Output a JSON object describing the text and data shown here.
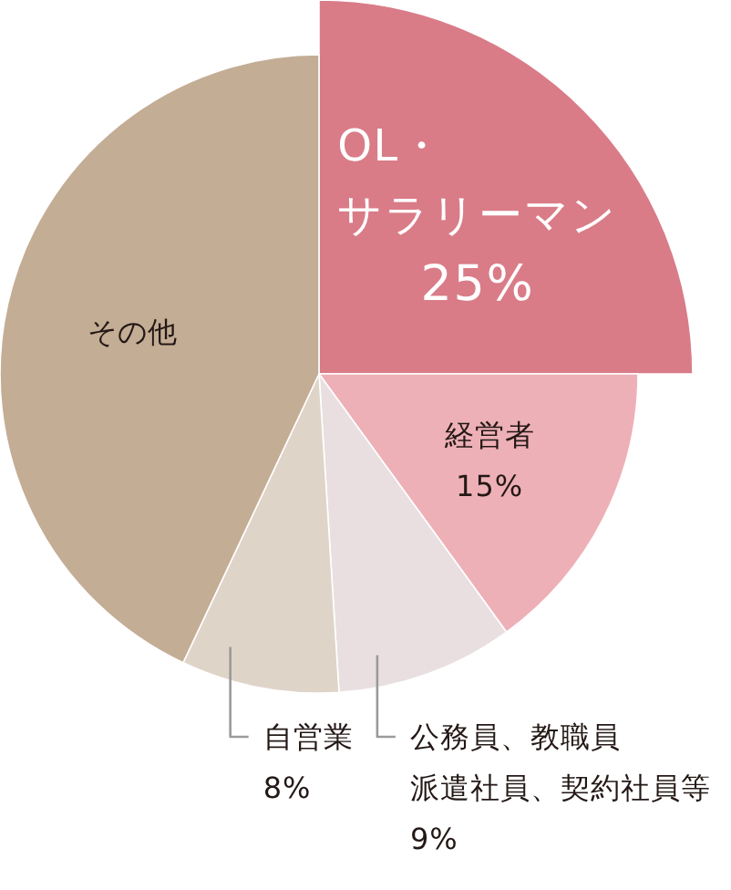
{
  "chart_data": {
    "type": "pie",
    "categories": [
      "OL・サラリーマン",
      "経営者",
      "公務員、教職員派遣社員、契約社員等",
      "自営業",
      "その他"
    ],
    "values": [
      25,
      15,
      9,
      8,
      43
    ],
    "colors": [
      "#d97c88",
      "#eeb0b7",
      "#e9dfe0",
      "#dfd4c8",
      "#c4ad95"
    ],
    "value_labels": [
      "25%",
      "15%",
      "9%",
      "8%",
      null
    ]
  }
}
